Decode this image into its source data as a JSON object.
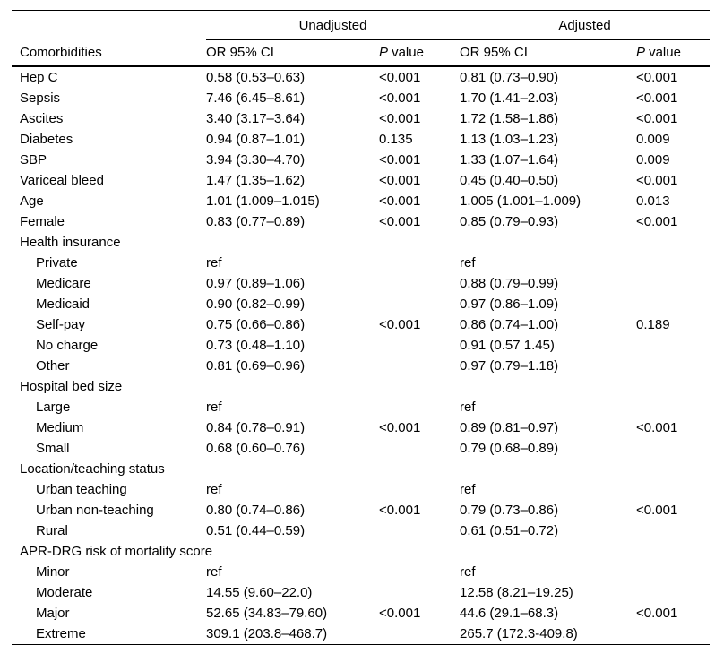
{
  "table": {
    "group_header": {
      "unadjusted": "Unadjusted",
      "adjusted": "Adjusted"
    },
    "column_header": {
      "comorbidities": "Comorbidities",
      "unadjusted_or_ci": "OR 95% CI",
      "unadjusted_p_italic": "P",
      "unadjusted_p_rest": "value",
      "adjusted_or_ci": "OR 95% CI",
      "adjusted_p_italic": "P",
      "adjusted_p_rest": "value"
    },
    "rows": [
      {
        "label": "Hep C",
        "indent": false,
        "unadjusted_or": "0.58 (0.53–0.63)",
        "unadjusted_p": "<0.001",
        "adjusted_or": "0.81 (0.73–0.90)",
        "adjusted_p": "<0.001"
      },
      {
        "label": "Sepsis",
        "indent": false,
        "unadjusted_or": "7.46 (6.45–8.61)",
        "unadjusted_p": "<0.001",
        "adjusted_or": "1.70 (1.41–2.03)",
        "adjusted_p": "<0.001"
      },
      {
        "label": "Ascites",
        "indent": false,
        "unadjusted_or": "3.40 (3.17–3.64)",
        "unadjusted_p": "<0.001",
        "adjusted_or": "1.72 (1.58–1.86)",
        "adjusted_p": "<0.001"
      },
      {
        "label": "Diabetes",
        "indent": false,
        "unadjusted_or": "0.94 (0.87–1.01)",
        "unadjusted_p": "0.135",
        "adjusted_or": "1.13 (1.03–1.23)",
        "adjusted_p": "0.009"
      },
      {
        "label": "SBP",
        "indent": false,
        "unadjusted_or": "3.94 (3.30–4.70)",
        "unadjusted_p": "<0.001",
        "adjusted_or": "1.33 (1.07–1.64)",
        "adjusted_p": "0.009"
      },
      {
        "label": "Variceal bleed",
        "indent": false,
        "unadjusted_or": "1.47 (1.35–1.62)",
        "unadjusted_p": "<0.001",
        "adjusted_or": "0.45 (0.40–0.50)",
        "adjusted_p": "<0.001"
      },
      {
        "label": "Age",
        "indent": false,
        "unadjusted_or": "1.01 (1.009–1.015)",
        "unadjusted_p": "<0.001",
        "adjusted_or": "1.005 (1.001–1.009)",
        "adjusted_p": "0.013"
      },
      {
        "label": "Female",
        "indent": false,
        "unadjusted_or": "0.83 (0.77–0.89)",
        "unadjusted_p": "<0.001",
        "adjusted_or": "0.85 (0.79–0.93)",
        "adjusted_p": "<0.001"
      },
      {
        "label": "Health insurance",
        "indent": false,
        "unadjusted_or": "",
        "unadjusted_p": "",
        "adjusted_or": "",
        "adjusted_p": ""
      },
      {
        "label": "Private",
        "indent": true,
        "unadjusted_or": "ref",
        "unadjusted_p": "",
        "adjusted_or": "ref",
        "adjusted_p": ""
      },
      {
        "label": "Medicare",
        "indent": true,
        "unadjusted_or": "0.97 (0.89–1.06)",
        "unadjusted_p": "",
        "adjusted_or": "0.88 (0.79–0.99)",
        "adjusted_p": ""
      },
      {
        "label": "Medicaid",
        "indent": true,
        "unadjusted_or": "0.90 (0.82–0.99)",
        "unadjusted_p": "",
        "adjusted_or": "0.97 (0.86–1.09)",
        "adjusted_p": ""
      },
      {
        "label": "Self-pay",
        "indent": true,
        "unadjusted_or": "0.75 (0.66–0.86)",
        "unadjusted_p": "<0.001",
        "adjusted_or": "0.86 (0.74–1.00)",
        "adjusted_p": "0.189"
      },
      {
        "label": "No charge",
        "indent": true,
        "unadjusted_or": "0.73 (0.48–1.10)",
        "unadjusted_p": "",
        "adjusted_or": "0.91 (0.57 1.45)",
        "adjusted_p": ""
      },
      {
        "label": "Other",
        "indent": true,
        "unadjusted_or": "0.81 (0.69–0.96)",
        "unadjusted_p": "",
        "adjusted_or": "0.97 (0.79–1.18)",
        "adjusted_p": ""
      },
      {
        "label": "Hospital bed size",
        "indent": false,
        "unadjusted_or": "",
        "unadjusted_p": "",
        "adjusted_or": "",
        "adjusted_p": ""
      },
      {
        "label": "Large",
        "indent": true,
        "unadjusted_or": "ref",
        "unadjusted_p": "",
        "adjusted_or": "ref",
        "adjusted_p": ""
      },
      {
        "label": "Medium",
        "indent": true,
        "unadjusted_or": "0.84 (0.78–0.91)",
        "unadjusted_p": "<0.001",
        "adjusted_or": "0.89 (0.81–0.97)",
        "adjusted_p": "<0.001"
      },
      {
        "label": "Small",
        "indent": true,
        "unadjusted_or": "0.68 (0.60–0.76)",
        "unadjusted_p": "",
        "adjusted_or": "0.79 (0.68–0.89)",
        "adjusted_p": ""
      },
      {
        "label": "Location/teaching status",
        "indent": false,
        "unadjusted_or": "",
        "unadjusted_p": "",
        "adjusted_or": "",
        "adjusted_p": ""
      },
      {
        "label": "Urban teaching",
        "indent": true,
        "unadjusted_or": "ref",
        "unadjusted_p": "",
        "adjusted_or": "ref",
        "adjusted_p": ""
      },
      {
        "label": "Urban non-teaching",
        "indent": true,
        "unadjusted_or": "0.80 (0.74–0.86)",
        "unadjusted_p": "<0.001",
        "adjusted_or": "0.79 (0.73–0.86)",
        "adjusted_p": "<0.001"
      },
      {
        "label": "Rural",
        "indent": true,
        "unadjusted_or": "0.51 (0.44–0.59)",
        "unadjusted_p": "",
        "adjusted_or": "0.61 (0.51–0.72)",
        "adjusted_p": ""
      },
      {
        "label": "APR-DRG risk of mortality score",
        "indent": false,
        "unadjusted_or": "",
        "unadjusted_p": "",
        "adjusted_or": "",
        "adjusted_p": ""
      },
      {
        "label": "Minor",
        "indent": true,
        "unadjusted_or": "ref",
        "unadjusted_p": "",
        "adjusted_or": "ref",
        "adjusted_p": ""
      },
      {
        "label": "Moderate",
        "indent": true,
        "unadjusted_or": "14.55 (9.60–22.0)",
        "unadjusted_p": "",
        "adjusted_or": "12.58 (8.21–19.25)",
        "adjusted_p": ""
      },
      {
        "label": "Major",
        "indent": true,
        "unadjusted_or": "52.65 (34.83–79.60)",
        "unadjusted_p": "<0.001",
        "adjusted_or": "44.6 (29.1–68.3)",
        "adjusted_p": "<0.001"
      },
      {
        "label": "Extreme",
        "indent": true,
        "unadjusted_or": "309.1 (203.8–468.7)",
        "unadjusted_p": "",
        "adjusted_or": "265.7 (172.3-409.8)",
        "adjusted_p": ""
      }
    ]
  }
}
